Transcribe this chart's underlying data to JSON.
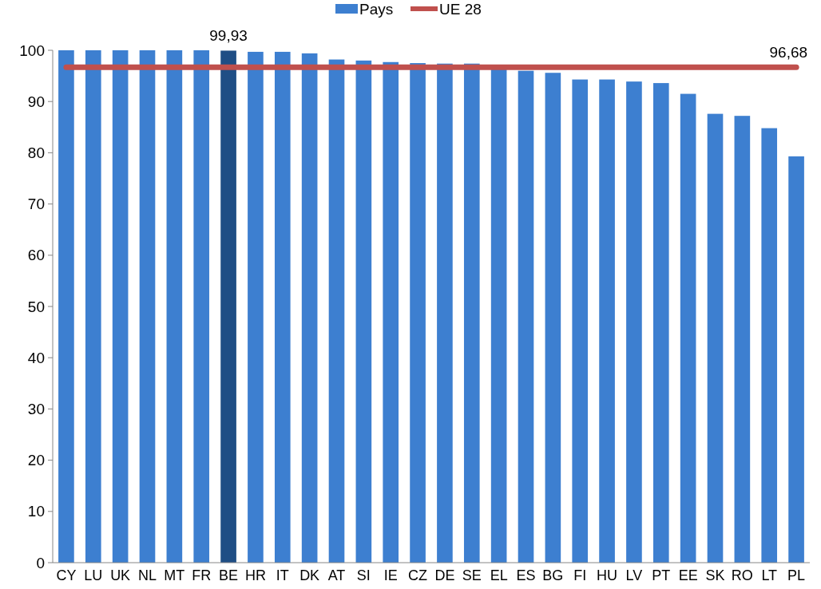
{
  "chart_data": {
    "type": "bar",
    "categories": [
      "CY",
      "LU",
      "UK",
      "NL",
      "MT",
      "FR",
      "BE",
      "HR",
      "IT",
      "DK",
      "AT",
      "SI",
      "IE",
      "CZ",
      "DE",
      "SE",
      "EL",
      "ES",
      "BG",
      "FI",
      "HU",
      "LV",
      "PT",
      "EE",
      "SK",
      "RO",
      "LT",
      "PL"
    ],
    "series": [
      {
        "name": "Pays",
        "color": "#3d7fd0",
        "colors": [
          "#3d7fd0",
          "#3d7fd0",
          "#3d7fd0",
          "#3d7fd0",
          "#3d7fd0",
          "#3d7fd0",
          "#1f4e85",
          "#3d7fd0",
          "#3d7fd0",
          "#3d7fd0",
          "#3d7fd0",
          "#3d7fd0",
          "#3d7fd0",
          "#3d7fd0",
          "#3d7fd0",
          "#3d7fd0",
          "#3d7fd0",
          "#3d7fd0",
          "#3d7fd0",
          "#3d7fd0",
          "#3d7fd0",
          "#3d7fd0",
          "#3d7fd0",
          "#3d7fd0",
          "#3d7fd0",
          "#3d7fd0",
          "#3d7fd0",
          "#3d7fd0"
        ],
        "values": [
          100,
          100,
          100,
          100,
          100,
          100,
          99.93,
          99.7,
          99.7,
          99.4,
          98.2,
          98.0,
          97.7,
          97.5,
          97.4,
          97.4,
          96.3,
          96.0,
          95.6,
          94.3,
          94.3,
          93.9,
          93.6,
          91.5,
          87.6,
          87.2,
          84.8,
          79.3
        ],
        "value_labels": [
          null,
          null,
          null,
          null,
          null,
          null,
          "99,93",
          null,
          null,
          null,
          null,
          null,
          null,
          null,
          null,
          null,
          null,
          null,
          null,
          null,
          null,
          null,
          null,
          null,
          null,
          null,
          null,
          null
        ]
      },
      {
        "name": "UE 28",
        "type": "line",
        "color": "#c0504d",
        "values": [
          96.68,
          96.68,
          96.68,
          96.68,
          96.68,
          96.68,
          96.68,
          96.68,
          96.68,
          96.68,
          96.68,
          96.68,
          96.68,
          96.68,
          96.68,
          96.68,
          96.68,
          96.68,
          96.68,
          96.68,
          96.68,
          96.68,
          96.68,
          96.68,
          96.68,
          96.68,
          96.68,
          96.68
        ],
        "value_labels": [
          null,
          null,
          null,
          null,
          null,
          null,
          null,
          null,
          null,
          null,
          null,
          null,
          null,
          null,
          null,
          null,
          null,
          null,
          null,
          null,
          null,
          null,
          null,
          null,
          null,
          null,
          null,
          "96,68"
        ]
      }
    ],
    "ylim": [
      0,
      100
    ],
    "yticks": [
      0,
      10,
      20,
      30,
      40,
      50,
      60,
      70,
      80,
      90,
      100
    ],
    "grid": false,
    "legend": "top",
    "marker": "none",
    "line_style": "solid"
  }
}
